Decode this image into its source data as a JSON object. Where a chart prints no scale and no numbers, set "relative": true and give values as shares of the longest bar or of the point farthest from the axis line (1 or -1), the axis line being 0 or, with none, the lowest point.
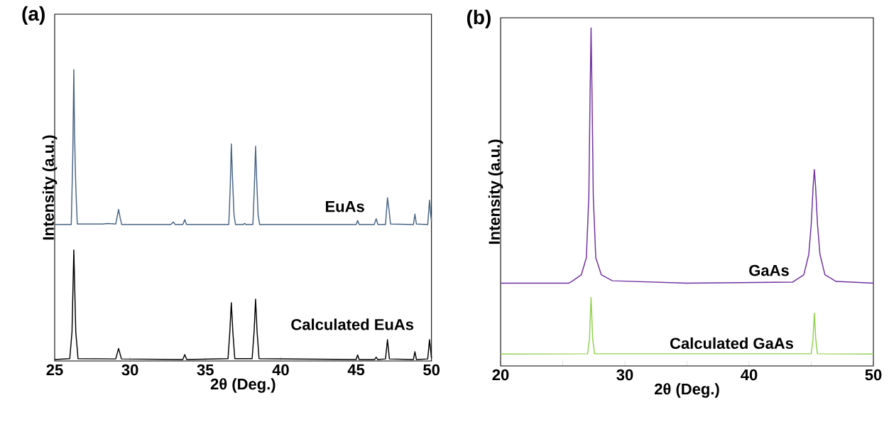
{
  "chart_data": [
    {
      "type": "line",
      "title": "(a)",
      "xlabel": "2θ (Deg.)",
      "ylabel": "Intensity (a.u.)",
      "relative": true,
      "xlim": [
        25,
        50
      ],
      "xticks": [
        25,
        30,
        35,
        40,
        45,
        50
      ],
      "series": [
        {
          "name": "EuAs",
          "color": "#4a6585",
          "x": [
            25,
            26.1,
            26.2,
            26.27,
            26.32,
            26.4,
            26.5,
            28.2,
            28.5,
            29.05,
            29.24,
            29.35,
            29.45,
            32.7,
            32.88,
            33.0,
            33.5,
            33.63,
            33.75,
            36.55,
            36.65,
            36.72,
            36.8,
            36.9,
            37.0,
            37.5,
            37.6,
            37.7,
            38.15,
            38.25,
            38.33,
            38.4,
            38.5,
            38.6,
            45.0,
            45.1,
            45.2,
            46.2,
            46.33,
            46.45,
            46.95,
            47.08,
            47.18,
            47.28,
            48.8,
            48.9,
            49.0,
            49.75,
            49.87,
            49.95,
            50
          ],
          "values": [
            0.468,
            0.468,
            0.7,
            1.0,
            0.774,
            0.6,
            0.47,
            0.47,
            0.472,
            0.47,
            0.52,
            0.49,
            0.468,
            0.468,
            0.477,
            0.468,
            0.468,
            0.485,
            0.468,
            0.468,
            0.6,
            0.745,
            0.626,
            0.5,
            0.468,
            0.468,
            0.472,
            0.468,
            0.468,
            0.6,
            0.737,
            0.625,
            0.5,
            0.468,
            0.468,
            0.482,
            0.468,
            0.468,
            0.488,
            0.468,
            0.468,
            0.56,
            0.52,
            0.47,
            0.468,
            0.504,
            0.47,
            0.468,
            0.552,
            0.5,
            0.48
          ]
        },
        {
          "name": "Calculated EuAs",
          "color": "#000000",
          "x": [
            25,
            26.0,
            26.15,
            26.27,
            26.4,
            26.55,
            29.05,
            29.24,
            29.43,
            33.5,
            33.63,
            33.76,
            36.5,
            36.62,
            36.72,
            36.82,
            36.95,
            38.1,
            38.23,
            38.33,
            38.43,
            38.56,
            45.0,
            45.1,
            45.2,
            46.23,
            46.33,
            46.43,
            46.95,
            47.08,
            47.21,
            48.8,
            48.9,
            49.0,
            49.75,
            49.87,
            50
          ],
          "values": [
            0.005,
            0.008,
            0.1,
            0.381,
            0.1,
            0.008,
            0.007,
            0.043,
            0.007,
            0.005,
            0.022,
            0.005,
            0.008,
            0.1,
            0.2,
            0.1,
            0.008,
            0.008,
            0.1,
            0.212,
            0.1,
            0.008,
            0.005,
            0.021,
            0.005,
            0.005,
            0.013,
            0.005,
            0.007,
            0.073,
            0.007,
            0.005,
            0.032,
            0.005,
            0.007,
            0.073,
            0.01
          ]
        }
      ]
    },
    {
      "type": "line",
      "title": "(b)",
      "xlabel": "2θ (Deg.)",
      "ylabel": "Intensity (a.u.)",
      "relative": true,
      "xlim": [
        20,
        50
      ],
      "xticks": [
        20,
        {
          "value": 25,
          "label": null
        },
        30,
        {
          "value": 35,
          "label": null
        },
        40,
        {
          "value": 45,
          "label": null
        },
        50
      ],
      "series": [
        {
          "name": "GaAs",
          "color": "#7030a0",
          "x": [
            20,
            25.5,
            25.77,
            26.5,
            26.9,
            27.1,
            27.2,
            27.28,
            27.36,
            27.46,
            27.66,
            28.1,
            29,
            35,
            43.5,
            44.4,
            44.8,
            45.0,
            45.15,
            45.25,
            45.35,
            45.5,
            45.7,
            46.1,
            47,
            50
          ],
          "values": [
            0.245,
            0.245,
            0.251,
            0.27,
            0.32,
            0.5,
            0.8,
            1.0,
            0.8,
            0.5,
            0.32,
            0.27,
            0.252,
            0.245,
            0.248,
            0.27,
            0.33,
            0.42,
            0.53,
            0.581,
            0.53,
            0.42,
            0.33,
            0.27,
            0.25,
            0.245
          ]
        },
        {
          "name": "Calculated GaAs",
          "color": "#92d050",
          "x": [
            20,
            27.0,
            27.15,
            27.28,
            27.41,
            27.56,
            45.0,
            45.14,
            45.25,
            45.36,
            45.5,
            50
          ],
          "values": [
            0.035,
            0.036,
            0.08,
            0.203,
            0.08,
            0.036,
            0.036,
            0.08,
            0.156,
            0.08,
            0.036,
            0.035
          ]
        }
      ]
    }
  ]
}
